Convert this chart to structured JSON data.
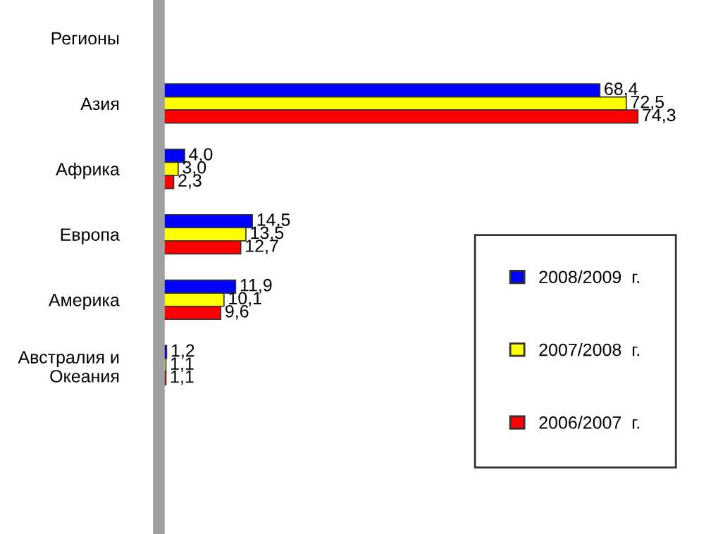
{
  "chart_data": {
    "type": "bar",
    "orientation": "horizontal",
    "legend": "bottom right",
    "grid": false,
    "categories": [
      "Регионы",
      "Азия",
      "Африка",
      "Европа",
      "Америка",
      "Австралия и\nОкеания",
      null,
      null
    ],
    "series": [
      {
        "name": "2008/2009  г.",
        "color": "#0000ff",
        "values": [
          null,
          68.4,
          4.0,
          14.5,
          11.9,
          1.2,
          null,
          null
        ],
        "value_labels": [
          null,
          "68,4",
          "4,0",
          "14,5",
          "11,9",
          "1,2",
          null,
          null
        ]
      },
      {
        "name": "2007/2008  г.",
        "color": "#ffff00",
        "values": [
          null,
          72.5,
          3.0,
          13.5,
          10.1,
          1.1,
          null,
          null
        ],
        "value_labels": [
          null,
          "72,5",
          "3,0",
          "13,5",
          "10,1",
          "1,1",
          null,
          null
        ]
      },
      {
        "name": "2006/2007  г.",
        "color": "#ff0000",
        "values": [
          null,
          74.3,
          2.3,
          12.7,
          9.6,
          1.1,
          null,
          null
        ],
        "value_labels": [
          null,
          "74,3",
          "2,3",
          "12,7",
          "9,6",
          "1,1",
          null,
          null
        ]
      }
    ]
  }
}
